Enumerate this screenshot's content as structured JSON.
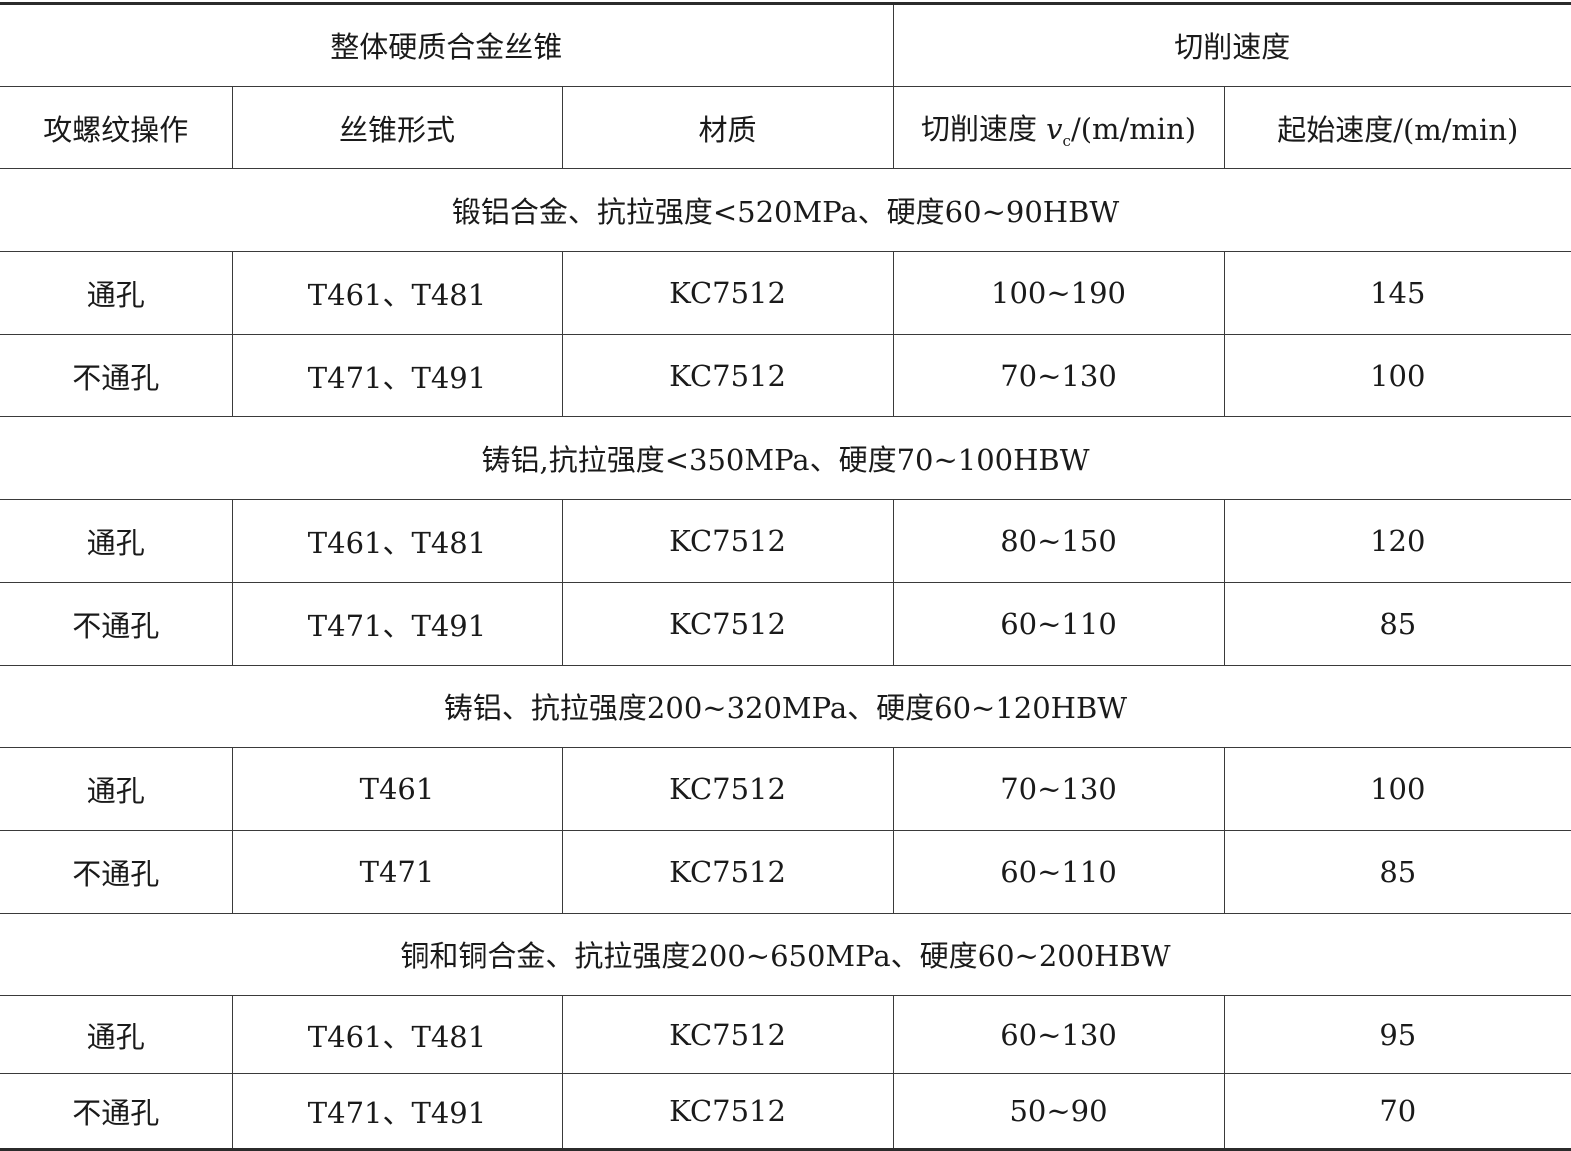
{
  "table": {
    "group_headers": [
      "整体硬质合金丝锥",
      "切削速度"
    ],
    "column_headers": {
      "operation": "攻螺纹操作",
      "tap_type": "丝锥形式",
      "grade": "材质",
      "cutting_speed": {
        "prefix": "切削速度 ",
        "symbol": "v",
        "subscript": "c",
        "unit": "/(m/min)"
      },
      "start_speed": "起始速度/(m/min)"
    },
    "sections": [
      {
        "title": "锻铝合金、抗拉强度<520MPa、硬度60~90HBW",
        "rows": [
          [
            "通孔",
            "T461、T481",
            "KC7512",
            "100~190",
            "145"
          ],
          [
            "不通孔",
            "T471、T491",
            "KC7512",
            "70~130",
            "100"
          ]
        ]
      },
      {
        "title": "铸铝,抗拉强度<350MPa、硬度70~100HBW",
        "rows": [
          [
            "通孔",
            "T461、T481",
            "KC7512",
            "80~150",
            "120"
          ],
          [
            "不通孔",
            "T471、T491",
            "KC7512",
            "60~110",
            "85"
          ]
        ]
      },
      {
        "title": "铸铝、抗拉强度200~320MPa、硬度60~120HBW",
        "rows": [
          [
            "通孔",
            "T461",
            "KC7512",
            "70~130",
            "100"
          ],
          [
            "不通孔",
            "T471",
            "KC7512",
            "60~110",
            "85"
          ]
        ]
      },
      {
        "title": "铜和铜合金、抗拉强度200~650MPa、硬度60~200HBW",
        "rows": [
          [
            "通孔",
            "T461、T481",
            "KC7512",
            "60~130",
            "95"
          ],
          [
            "不通孔",
            "T471、T491",
            "KC7512",
            "50~90",
            "70"
          ]
        ]
      }
    ]
  }
}
